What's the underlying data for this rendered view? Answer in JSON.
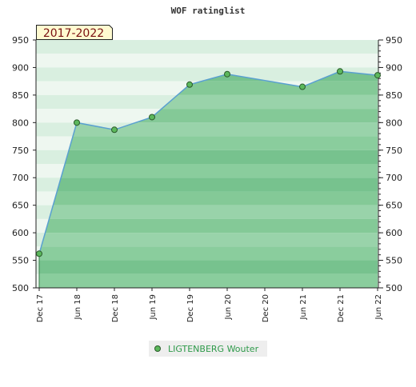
{
  "chart_data": {
    "type": "area",
    "title": "WOF ratinglist",
    "range_label": "2017-2022",
    "xlabel": "",
    "ylabel": "",
    "ylim": [
      500,
      950
    ],
    "yticks": [
      500,
      550,
      600,
      650,
      700,
      750,
      800,
      850,
      900,
      950
    ],
    "x_ticks": [
      "Dec 17",
      "Jun 18",
      "Dec 18",
      "Jun 19",
      "Dec 19",
      "Jun 20",
      "Dec 20",
      "Jun 21",
      "Dec 21",
      "Jun 22"
    ],
    "grid": true,
    "legend_position": "bottom-center",
    "series": [
      {
        "name": "LIGTENBERG Wouter",
        "color": "#5aa0d0",
        "marker_color": "#5cb85c",
        "points": [
          {
            "x": "Dec 17",
            "y": 562
          },
          {
            "x": "Jun 18",
            "y": 800
          },
          {
            "x": "Dec 18",
            "y": 787
          },
          {
            "x": "Jun 19",
            "y": 810
          },
          {
            "x": "Dec 19",
            "y": 869
          },
          {
            "x": "Jun 20",
            "y": 888
          },
          {
            "x": "Jun 21",
            "y": 865
          },
          {
            "x": "Dec 21",
            "y": 893
          },
          {
            "x": "Jun 22",
            "y": 886
          }
        ]
      }
    ]
  }
}
